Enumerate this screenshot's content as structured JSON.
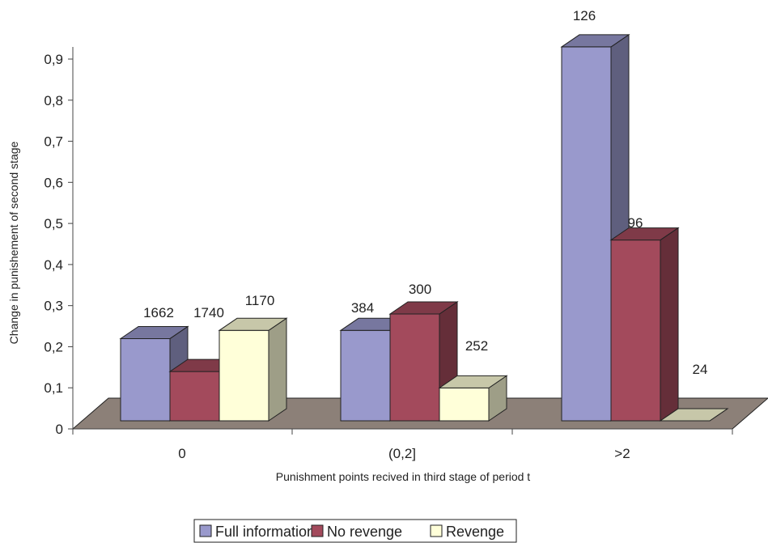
{
  "chart_data": {
    "type": "bar",
    "title": "",
    "xlabel": "Punishment points recived in third stage of period t",
    "ylabel": "Change in punishement of second stage",
    "categories": [
      "0",
      "(0,2]",
      ">2"
    ],
    "ylim": [
      0,
      0.9
    ],
    "yticks": [
      "0",
      "0,1",
      "0,2",
      "0,3",
      "0,4",
      "0,5",
      "0,6",
      "0,7",
      "0,8",
      "0,9"
    ],
    "grid": false,
    "legend_position": "bottom-center",
    "series": [
      {
        "name": "Full information",
        "color": "#9999cc",
        "values": [
          0.2,
          0.22,
          0.91
        ],
        "labels": [
          "1662",
          "384",
          "126"
        ]
      },
      {
        "name": "No revenge",
        "color": "#a34a5c",
        "values": [
          0.12,
          0.26,
          0.44
        ],
        "labels": [
          "1740",
          "300",
          "96"
        ]
      },
      {
        "name": "Revenge",
        "color": "#ffffd9",
        "values": [
          0.22,
          0.08,
          0.0
        ],
        "labels": [
          "1170",
          "252",
          "24"
        ]
      }
    ],
    "floor_color": "#8c8078"
  }
}
